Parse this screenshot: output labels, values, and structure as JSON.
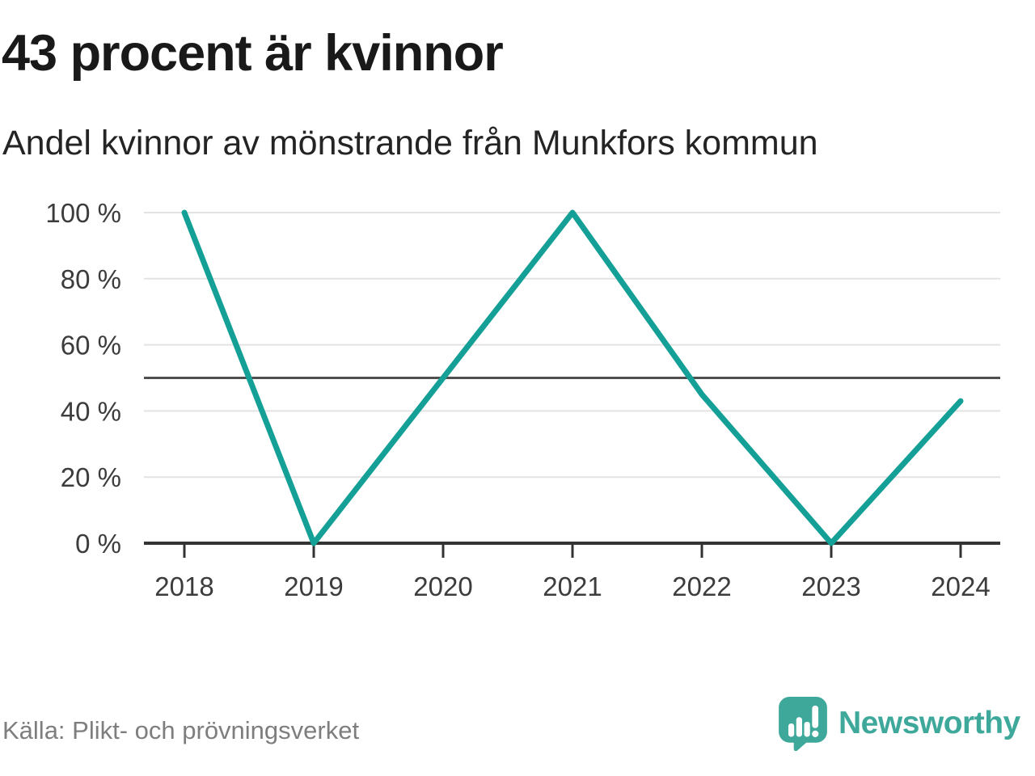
{
  "header": {
    "title": "43 procent är kvinnor",
    "subtitle": "Andel kvinnor av mönstrande från Munkfors kommun"
  },
  "chart_data": {
    "type": "line",
    "title": "43 procent är kvinnor",
    "subtitle": "Andel kvinnor av mönstrande från Munkfors kommun",
    "categories": [
      "2018",
      "2019",
      "2020",
      "2021",
      "2022",
      "2023",
      "2024"
    ],
    "series": [
      {
        "name": "Andel kvinnor av mönstrande",
        "values": [
          100,
          0,
          50,
          100,
          45,
          0,
          43
        ]
      }
    ],
    "unit": "%",
    "ylim": [
      0,
      100
    ],
    "y_ticks": [
      0,
      20,
      40,
      60,
      80,
      100
    ],
    "y_tick_labels": [
      "0 %",
      "20 %",
      "40 %",
      "60 %",
      "80 %",
      "100 %"
    ],
    "reference_line": 50,
    "grid": true,
    "legend": "none",
    "line_color": "#14a096",
    "colors": {
      "grid": "#e3e3e3",
      "reference": "#4f4f4f",
      "axis": "#333333",
      "tick_text": "#3c3c3c"
    }
  },
  "footer": {
    "source": "Källa: Plikt- och prövningsverket",
    "brand": "Newsworthy",
    "brand_color": "#3ea89b"
  }
}
